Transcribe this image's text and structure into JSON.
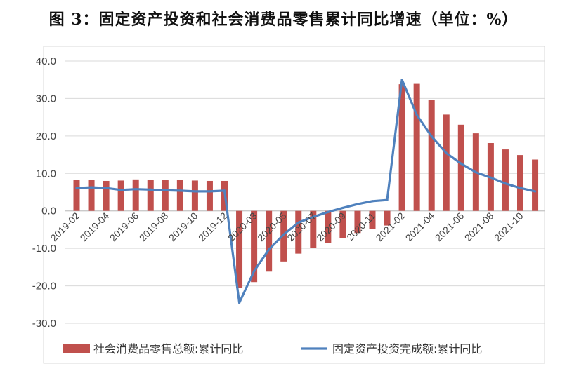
{
  "title": "图 3：固定资产投资和社会消费品零售累计同比增速（单位：%）",
  "chart_data": {
    "type": "bar",
    "title": "图 3：固定资产投资和社会消费品零售累计同比增速（单位：%）",
    "xlabel": "",
    "ylabel": "",
    "ylim": [
      -30,
      40
    ],
    "yticks": [
      "40.0",
      "30.0",
      "20.0",
      "10.0",
      "0.0",
      "-10.0",
      "-20.0",
      "-30.0"
    ],
    "grid": true,
    "legend_position": "bottom",
    "categories": [
      "2019-02",
      "2019-03",
      "2019-04",
      "2019-05",
      "2019-06",
      "2019-07",
      "2019-08",
      "2019-09",
      "2019-10",
      "2019-11",
      "2019-12",
      "2020-02",
      "2020-03",
      "2020-04",
      "2020-05",
      "2020-06",
      "2020-07",
      "2020-08",
      "2020-09",
      "2020-10",
      "2020-11",
      "2020-12",
      "2021-02",
      "2021-03",
      "2021-04",
      "2021-05",
      "2021-06",
      "2021-07",
      "2021-08",
      "2021-09",
      "2021-10",
      "2021-11"
    ],
    "x_tick_labels": [
      "2019-02",
      "2019-04",
      "2019-06",
      "2019-08",
      "2019-10",
      "2019-12",
      "2020-03",
      "2020-05",
      "2020-07",
      "2020-09",
      "2020-11",
      "2021-02",
      "2021-04",
      "2021-06",
      "2021-08",
      "2021-10"
    ],
    "series": [
      {
        "name": "社会消费品零售总额:累计同比",
        "kind": "bar",
        "color": "#C0504D",
        "values": [
          8.2,
          8.3,
          8.0,
          8.1,
          8.4,
          8.3,
          8.2,
          8.2,
          8.1,
          8.0,
          8.0,
          -20.5,
          -19.0,
          -16.2,
          -13.5,
          -11.4,
          -9.9,
          -8.6,
          -7.2,
          -5.9,
          -4.8,
          -3.9,
          33.8,
          33.9,
          29.6,
          25.7,
          23.0,
          20.7,
          18.1,
          16.4,
          14.9,
          13.7
        ]
      },
      {
        "name": "固定资产投资完成额:累计同比",
        "kind": "line",
        "color": "#4F81BD",
        "values": [
          6.1,
          6.3,
          6.1,
          5.6,
          5.8,
          5.7,
          5.5,
          5.4,
          5.2,
          5.2,
          5.4,
          -24.5,
          -16.1,
          -10.3,
          -6.3,
          -3.1,
          -1.6,
          -0.3,
          0.8,
          1.8,
          2.6,
          2.9,
          35.0,
          25.6,
          19.9,
          15.4,
          12.6,
          10.3,
          8.9,
          7.3,
          6.1,
          5.2
        ]
      }
    ]
  }
}
